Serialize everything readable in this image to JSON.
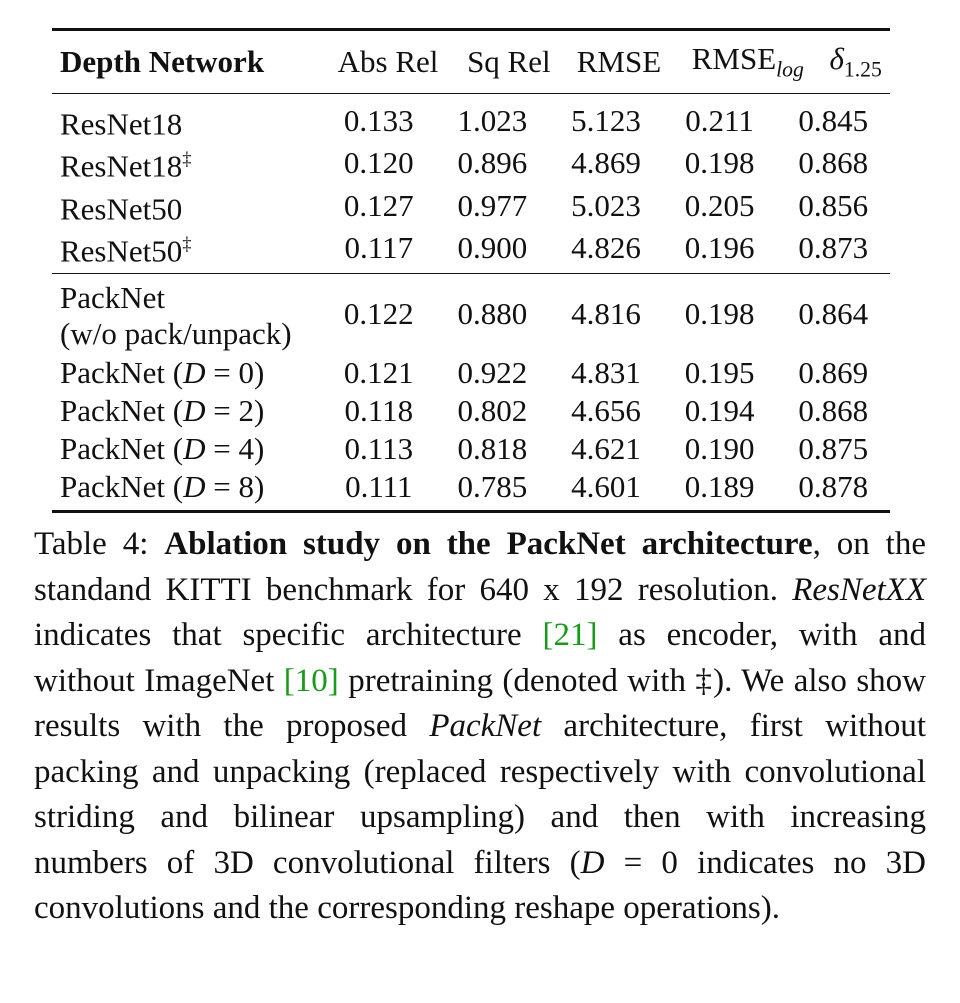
{
  "table": {
    "headers": {
      "network": "Depth Network",
      "abs_rel": "Abs Rel",
      "sq_rel": "Sq Rel",
      "rmse": "RMSE",
      "rmse_log_base": "RMSE",
      "rmse_log_sub": "log",
      "delta_base": "δ",
      "delta_sub": "1.25"
    },
    "group1": [
      {
        "name": "ResNet18",
        "mark": "",
        "abs_rel": "0.133",
        "sq_rel": "1.023",
        "rmse": "5.123",
        "rmse_log": "0.211",
        "delta": "0.845"
      },
      {
        "name": "ResNet18",
        "mark": "‡",
        "abs_rel": "0.120",
        "sq_rel": "0.896",
        "rmse": "4.869",
        "rmse_log": "0.198",
        "delta": "0.868"
      },
      {
        "name": "ResNet50",
        "mark": "",
        "abs_rel": "0.127",
        "sq_rel": "0.977",
        "rmse": "5.023",
        "rmse_log": "0.205",
        "delta": "0.856"
      },
      {
        "name": "ResNet50",
        "mark": "‡",
        "abs_rel": "0.117",
        "sq_rel": "0.900",
        "rmse": "4.826",
        "rmse_log": "0.196",
        "delta": "0.873"
      }
    ],
    "packnet_plain": {
      "line1": "PackNet",
      "line2": "(w/o pack/unpack)",
      "abs_rel": "0.122",
      "sq_rel": "0.880",
      "rmse": "4.816",
      "rmse_log": "0.198",
      "delta": "0.864"
    },
    "group2": [
      {
        "prefix": "PackNet (",
        "var": "D",
        "eq": " = 0)",
        "abs_rel": "0.121",
        "sq_rel": "0.922",
        "rmse": "4.831",
        "rmse_log": "0.195",
        "delta": "0.869"
      },
      {
        "prefix": "PackNet (",
        "var": "D",
        "eq": " = 2)",
        "abs_rel": "0.118",
        "sq_rel": "0.802",
        "rmse": "4.656",
        "rmse_log": "0.194",
        "delta": "0.868"
      },
      {
        "prefix": "PackNet (",
        "var": "D",
        "eq": " = 4)",
        "abs_rel": "0.113",
        "sq_rel": "0.818",
        "rmse": "4.621",
        "rmse_log": "0.190",
        "delta": "0.875"
      },
      {
        "prefix": "PackNet (",
        "var": "D",
        "eq": " = 8)",
        "abs_rel": "0.111",
        "sq_rel": "0.785",
        "rmse": "4.601",
        "rmse_log": "0.189",
        "delta": "0.878"
      }
    ]
  },
  "caption": {
    "label": "Table 4:  ",
    "title": "Ablation study on the PackNet architecture",
    "t1": ", on the standand KITTI benchmark for 640 x 192 resolution. ",
    "resnetxx": "ResNetXX",
    "t2": " indicates that specific architecture ",
    "cite1": "[21]",
    "t3": " as encoder, with and without ImageNet ",
    "cite2": "[10]",
    "t4": " pretraining (denoted with ‡). We also show results with the proposed ",
    "packnet": "PackNet",
    "t5": " architecture, first without packing and unpacking (replaced respectively with convolutional striding and bilinear upsampling) and then with increasing numbers of 3D convolutional filters (",
    "dvar": "D",
    "t6": " = 0 indicates no 3D convolutions and the corresponding reshape operations)."
  }
}
